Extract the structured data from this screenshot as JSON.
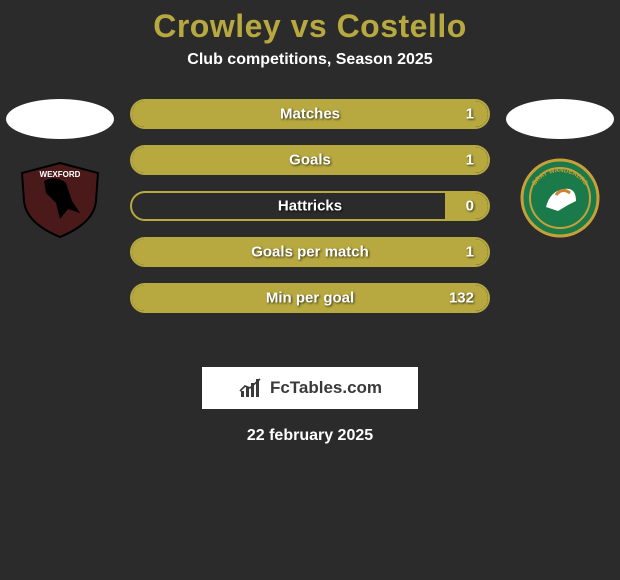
{
  "title": {
    "text": "Crowley vs Costello",
    "color": "#b7a93f",
    "fontsize": 32
  },
  "subtitle": {
    "text": "Club competitions, Season 2025",
    "color": "#ffffff",
    "fontsize": 16
  },
  "accent_color": "#b7a93f",
  "background_color": "#2b2b2b",
  "stats": [
    {
      "label": "Matches",
      "value": "1",
      "fill_pct": 100
    },
    {
      "label": "Goals",
      "value": "1",
      "fill_pct": 100
    },
    {
      "label": "Hattricks",
      "value": "0",
      "fill_pct": 12
    },
    {
      "label": "Goals per match",
      "value": "1",
      "fill_pct": 100
    },
    {
      "label": "Min per goal",
      "value": "132",
      "fill_pct": 100
    }
  ],
  "stat_label_fontsize": 15,
  "stat_value_fontsize": 15,
  "left_team": {
    "name": "Wexford",
    "crest_primary": "#4a1a1a",
    "crest_secondary": "#000000"
  },
  "right_team": {
    "name": "Bray Wanderers",
    "crest_primary": "#1a7a4a",
    "crest_border": "#c9a038"
  },
  "logo": {
    "text": "FcTables.com",
    "icon_color": "#3a3a3a"
  },
  "footer_date": {
    "text": "22 february 2025",
    "fontsize": 16
  }
}
